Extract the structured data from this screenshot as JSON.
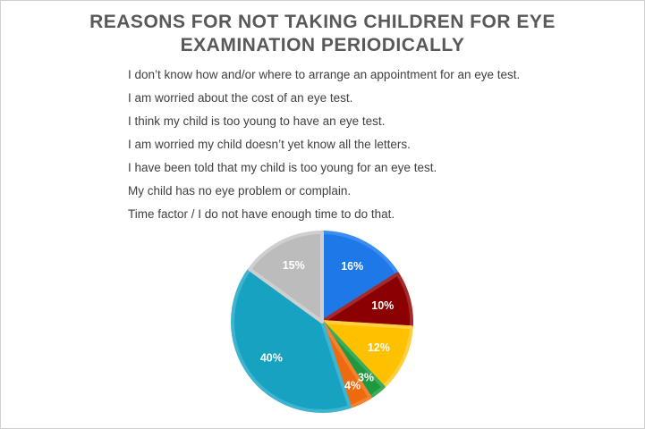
{
  "title_lines": [
    "REASONS FOR NOT TAKING CHILDREN FOR EYE",
    "EXAMINATION PERIODICALLY"
  ],
  "chart_data": {
    "type": "pie",
    "title": "REASONS FOR NOT TAKING CHILDREN FOR EYE EXAMINATION PERIODICALLY",
    "legend_position": "top",
    "categories": [
      "I don’t know how and/or where to arrange an appointment for an eye test.",
      "I am worried about the cost of an eye test.",
      "I think my child is too young to have an eye test.",
      "I am worried my child doesn’t yet know all the letters.",
      "I have been told that my child is too young for an eye test.",
      "My child has no eye problem or complain.",
      "Time factor / I do not have enough time to do that."
    ],
    "values": [
      16,
      10,
      12,
      3,
      4,
      40,
      15
    ],
    "labels": [
      "16%",
      "10%",
      "12%",
      "3%",
      "4%",
      "40%",
      "15%"
    ],
    "colors": [
      "#1f78e8",
      "#8b0000",
      "#ffc000",
      "#1e9940",
      "#ed6a0f",
      "#17a2c2",
      "#bcbcbc"
    ],
    "border_colors": [
      "#3b8df5",
      "#a52a2a",
      "#ffcf40",
      "#3aac5a",
      "#f5822e",
      "#3fb4d0",
      "#cfcfcf"
    ]
  }
}
